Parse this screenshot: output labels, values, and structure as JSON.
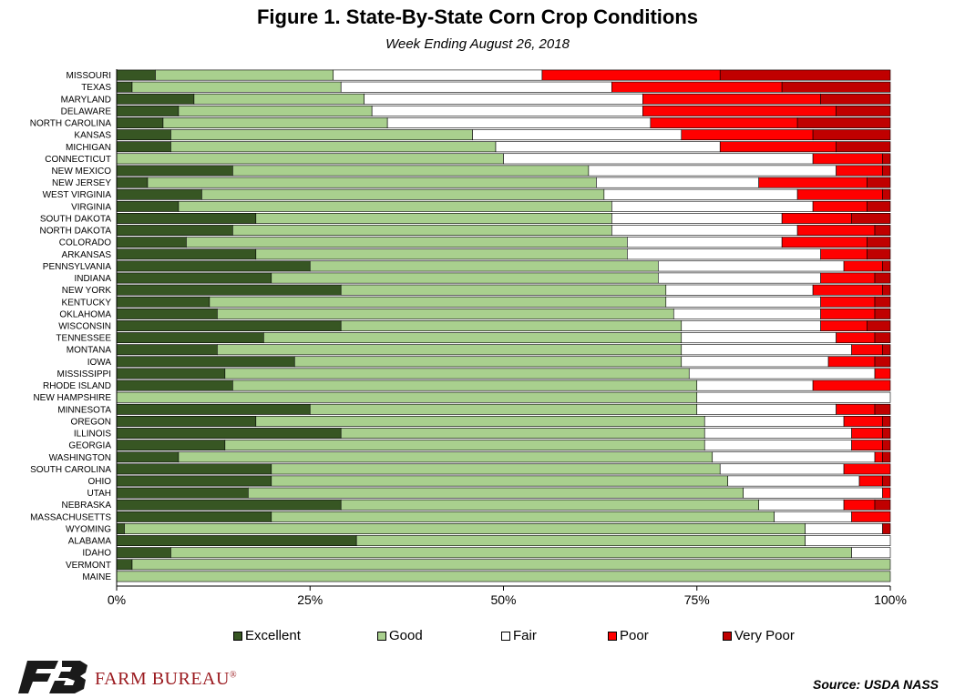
{
  "chart_data": {
    "type": "bar",
    "orientation": "horizontal",
    "stacked": "percent",
    "title": "Figure 1. State-By-State Corn Crop Conditions",
    "subtitle": "Week Ending August 26, 2018",
    "xlim": [
      0,
      100
    ],
    "x_ticks": [
      "0%",
      "25%",
      "50%",
      "75%",
      "100%"
    ],
    "grid": false,
    "legend_position": "bottom",
    "categories": [
      "MISSOURI",
      "TEXAS",
      "MARYLAND",
      "DELAWARE",
      "NORTH CAROLINA",
      "KANSAS",
      "MICHIGAN",
      "CONNECTICUT",
      "NEW MEXICO",
      "NEW JERSEY",
      "WEST VIRGINIA",
      "VIRGINIA",
      "SOUTH DAKOTA",
      "NORTH DAKOTA",
      "COLORADO",
      "ARKANSAS",
      "PENNSYLVANIA",
      "INDIANA",
      "NEW YORK",
      "KENTUCKY",
      "OKLAHOMA",
      "WISCONSIN",
      "TENNESSEE",
      "MONTANA",
      "IOWA",
      "MISSISSIPPI",
      "RHODE ISLAND",
      "NEW HAMPSHIRE",
      "MINNESOTA",
      "OREGON",
      "ILLINOIS",
      "GEORGIA",
      "WASHINGTON",
      "SOUTH CAROLINA",
      "OHIO",
      "UTAH",
      "NEBRASKA",
      "MASSACHUSETTS",
      "WYOMING",
      "ALABAMA",
      "IDAHO",
      "VERMONT",
      "MAINE"
    ],
    "series": [
      {
        "name": "Excellent",
        "color": "#375623",
        "values": [
          5,
          2,
          10,
          8,
          6,
          7,
          7,
          0,
          15,
          4,
          11,
          8,
          18,
          15,
          9,
          18,
          25,
          20,
          29,
          12,
          13,
          29,
          19,
          13,
          23,
          14,
          15,
          0,
          25,
          18,
          29,
          14,
          8,
          20,
          20,
          17,
          29,
          20,
          1,
          31,
          7,
          2,
          0
        ]
      },
      {
        "name": "Good",
        "color": "#a9d08e",
        "values": [
          23,
          27,
          22,
          25,
          29,
          39,
          42,
          50,
          46,
          58,
          52,
          56,
          46,
          49,
          57,
          48,
          45,
          50,
          42,
          59,
          59,
          44,
          54,
          60,
          50,
          60,
          60,
          75,
          50,
          58,
          47,
          62,
          69,
          58,
          59,
          64,
          54,
          65,
          88,
          58,
          88,
          98,
          100
        ]
      },
      {
        "name": "Fair",
        "color": "#ffffff",
        "values": [
          27,
          35,
          36,
          35,
          34,
          27,
          29,
          40,
          32,
          21,
          25,
          26,
          22,
          24,
          20,
          25,
          24,
          21,
          19,
          20,
          19,
          18,
          20,
          22,
          19,
          24,
          15,
          25,
          18,
          18,
          19,
          19,
          21,
          16,
          17,
          18,
          11,
          10,
          10,
          11,
          5,
          0,
          0
        ]
      },
      {
        "name": "Poor",
        "color": "#ff0000",
        "values": [
          23,
          22,
          23,
          25,
          19,
          17,
          15,
          9,
          6,
          14,
          11,
          7,
          9,
          10,
          11,
          6,
          5,
          7,
          9,
          7,
          7,
          6,
          5,
          4,
          6,
          2,
          10,
          0,
          5,
          5,
          4,
          4,
          1,
          6,
          3,
          1,
          4,
          5,
          0,
          0,
          0,
          0,
          0
        ]
      },
      {
        "name": "Very Poor",
        "color": "#c00000",
        "values": [
          22,
          14,
          9,
          7,
          12,
          10,
          7,
          1,
          1,
          3,
          1,
          3,
          5,
          2,
          3,
          3,
          1,
          2,
          1,
          2,
          2,
          3,
          2,
          1,
          2,
          0,
          0,
          0,
          2,
          1,
          1,
          1,
          1,
          0,
          1,
          0,
          2,
          0,
          1,
          0,
          0,
          0,
          0
        ]
      }
    ]
  },
  "footer": {
    "logo_text": "FARM BUREAU",
    "logo_mark": "®",
    "source": "Source: USDA NASS"
  }
}
